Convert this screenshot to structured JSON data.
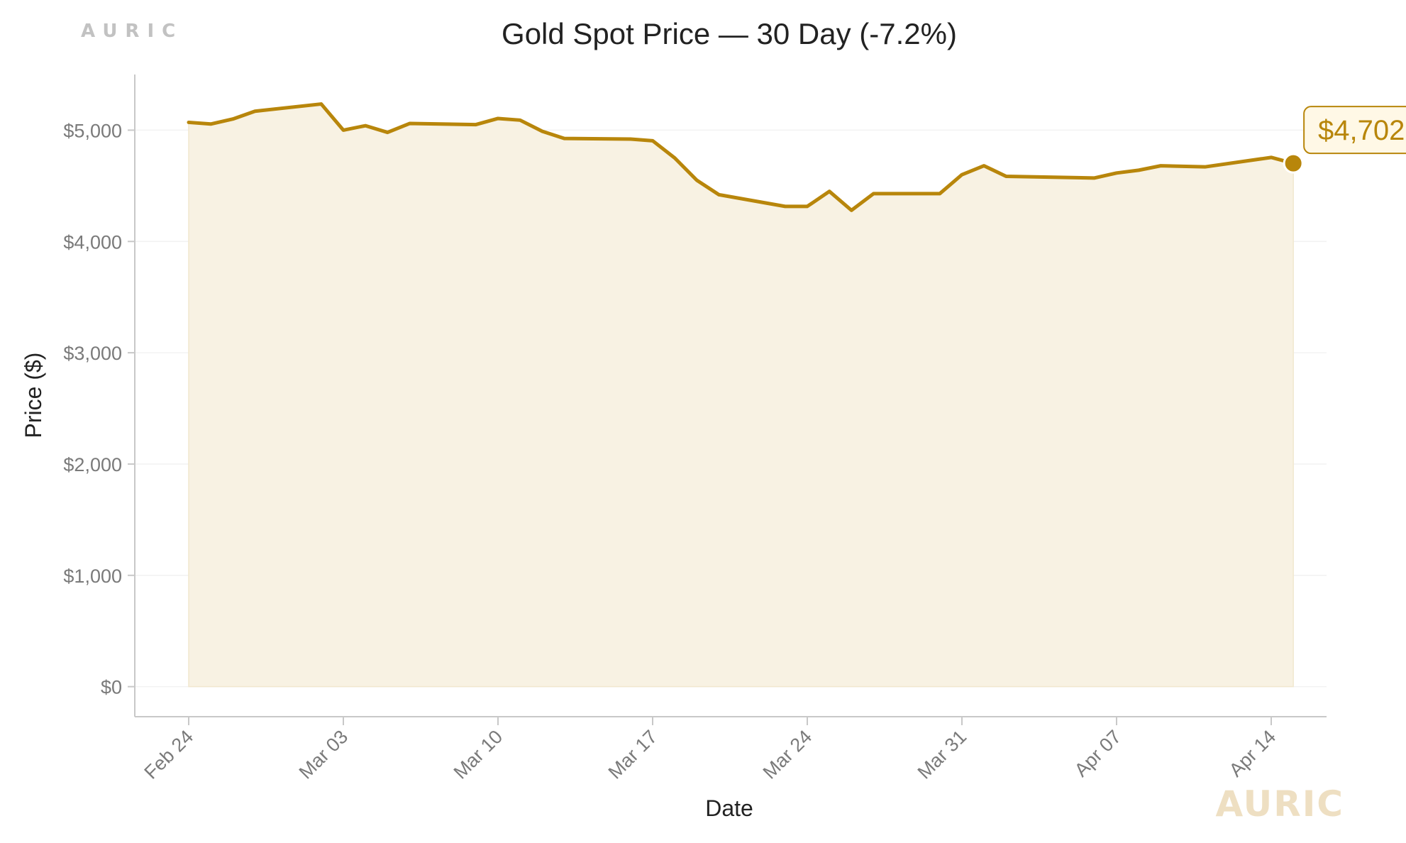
{
  "brand": {
    "top_label": "AURIC",
    "watermark": "AURIC"
  },
  "colors": {
    "accent": "#B8860B",
    "fill": "#F8F2E3",
    "annotation_bg": "#FFF8E6",
    "watermark": "#EEDFC2",
    "grid": "#F2F2F2",
    "axis": "#C8C8C8"
  },
  "chart_data": {
    "type": "area",
    "title": "Gold Spot Price — 30 Day (-7.2%)",
    "xlabel": "Date",
    "ylabel": "Price ($)",
    "ylim": [
      -270,
      5500
    ],
    "yticks": [
      0,
      1000,
      2000,
      3000,
      4000,
      5000
    ],
    "ytick_labels": [
      "$0",
      "$1,000",
      "$2,000",
      "$3,000",
      "$4,000",
      "$5,000"
    ],
    "xticks": [
      "2025-02-24",
      "2025-03-03",
      "2025-03-10",
      "2025-03-17",
      "2025-03-24",
      "2025-03-31",
      "2025-04-07",
      "2025-04-14"
    ],
    "xtick_labels": [
      "Feb 24",
      "Mar 03",
      "Mar 10",
      "Mar 17",
      "Mar 24",
      "Mar 31",
      "Apr 07",
      "Apr 14"
    ],
    "grid": true,
    "series": [
      {
        "x": [
          "2025-02-24",
          "2025-02-25",
          "2025-02-26",
          "2025-02-27",
          "2025-03-02",
          "2025-03-03",
          "2025-03-04",
          "2025-03-05",
          "2025-03-06",
          "2025-03-09",
          "2025-03-10",
          "2025-03-11",
          "2025-03-12",
          "2025-03-13",
          "2025-03-16",
          "2025-03-17",
          "2025-03-18",
          "2025-03-19",
          "2025-03-20",
          "2025-03-23",
          "2025-03-24",
          "2025-03-25",
          "2025-03-26",
          "2025-03-27",
          "2025-03-30",
          "2025-03-31",
          "2025-04-01",
          "2025-04-02",
          "2025-04-06",
          "2025-04-07",
          "2025-04-08",
          "2025-04-09",
          "2025-04-11",
          "2025-04-14",
          "2025-04-15"
        ],
        "y": [
          5070,
          5055,
          5100,
          5170,
          5235,
          5000,
          5040,
          4980,
          5060,
          5050,
          5105,
          5090,
          4990,
          4925,
          4920,
          4905,
          4750,
          4550,
          4420,
          4315,
          4315,
          4450,
          4280,
          4430,
          4430,
          4600,
          4680,
          4585,
          4570,
          4615,
          4640,
          4680,
          4670,
          4755,
          4702
        ]
      }
    ],
    "last_value_label": "$4,702"
  }
}
